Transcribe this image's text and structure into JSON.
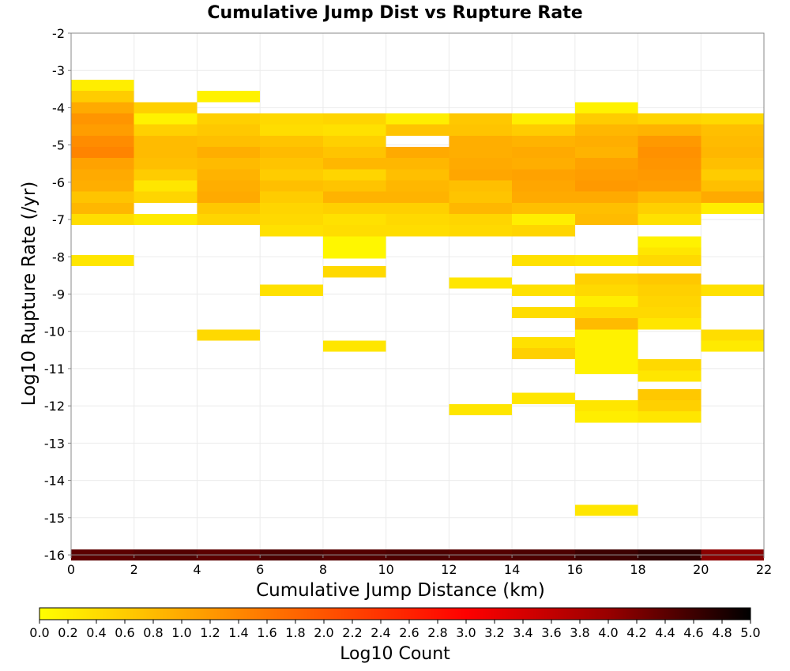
{
  "chart_data": {
    "type": "heatmap",
    "title": "Cumulative Jump Dist vs Rupture Rate",
    "xlabel": "Cumulative Jump Distance (km)",
    "ylabel": "Log10 Rupture Rate (/yr)",
    "xlim": [
      0,
      22
    ],
    "ylim": [
      -16,
      -2
    ],
    "x_ticks": [
      "0",
      "2",
      "4",
      "6",
      "8",
      "10",
      "12",
      "14",
      "16",
      "18",
      "20",
      "22"
    ],
    "y_ticks": [
      "-2",
      "-3",
      "-4",
      "-5",
      "-6",
      "-7",
      "-8",
      "-9",
      "-10",
      "-11",
      "-12",
      "-13",
      "-14",
      "-15",
      "-16"
    ],
    "x_bin_width": 2,
    "y_bin_height": 0.3,
    "grid": true,
    "colorbar": {
      "label": "Log10 Count",
      "range": [
        0,
        5
      ],
      "ticks": [
        "0.0",
        "0.2",
        "0.4",
        "0.6",
        "0.8",
        "1.0",
        "1.2",
        "1.4",
        "1.6",
        "1.8",
        "2.0",
        "2.2",
        "2.4",
        "2.6",
        "2.8",
        "3.0",
        "3.2",
        "3.4",
        "3.6",
        "3.8",
        "4.0",
        "4.2",
        "4.4",
        "4.6",
        "4.8",
        "5.0"
      ],
      "colors": [
        "#ffff00",
        "#ffaa00",
        "#ff5500",
        "#ff0000",
        "#990000",
        "#000000"
      ]
    },
    "cells": [
      [
        0,
        -3.4,
        0.2
      ],
      [
        0,
        -3.7,
        0.6
      ],
      [
        0,
        -4.0,
        1.0
      ],
      [
        0,
        -4.3,
        1.25
      ],
      [
        0,
        -4.6,
        1.15
      ],
      [
        0,
        -4.9,
        1.35
      ],
      [
        0,
        -5.2,
        1.45
      ],
      [
        0,
        -5.5,
        1.1
      ],
      [
        0,
        -5.8,
        1.0
      ],
      [
        0,
        -6.1,
        0.95
      ],
      [
        0,
        -6.4,
        0.7
      ],
      [
        0,
        -6.7,
        0.85
      ],
      [
        0,
        -7.0,
        0.4
      ],
      [
        0,
        -8.1,
        0.3
      ],
      [
        2,
        -4.0,
        0.55
      ],
      [
        2,
        -4.3,
        0.15
      ],
      [
        2,
        -4.6,
        0.55
      ],
      [
        2,
        -4.9,
        0.8
      ],
      [
        2,
        -5.2,
        0.8
      ],
      [
        2,
        -5.5,
        0.75
      ],
      [
        2,
        -5.8,
        0.6
      ],
      [
        2,
        -6.1,
        0.3
      ],
      [
        2,
        -6.4,
        0.5
      ],
      [
        2,
        -7.0,
        0.25
      ],
      [
        4,
        -3.7,
        0.15
      ],
      [
        4,
        -4.3,
        0.55
      ],
      [
        4,
        -4.6,
        0.65
      ],
      [
        4,
        -4.9,
        0.75
      ],
      [
        4,
        -5.2,
        0.95
      ],
      [
        4,
        -5.5,
        0.8
      ],
      [
        4,
        -5.8,
        0.9
      ],
      [
        4,
        -6.1,
        0.95
      ],
      [
        4,
        -6.4,
        1.0
      ],
      [
        4,
        -6.7,
        0.65
      ],
      [
        4,
        -7.0,
        0.5
      ],
      [
        4,
        -10.1,
        0.45
      ],
      [
        6,
        -4.3,
        0.45
      ],
      [
        6,
        -4.6,
        0.4
      ],
      [
        6,
        -4.9,
        0.7
      ],
      [
        6,
        -5.2,
        0.8
      ],
      [
        6,
        -5.5,
        0.7
      ],
      [
        6,
        -5.8,
        0.6
      ],
      [
        6,
        -6.1,
        0.75
      ],
      [
        6,
        -6.4,
        0.6
      ],
      [
        6,
        -6.7,
        0.5
      ],
      [
        6,
        -7.0,
        0.45
      ],
      [
        6,
        -7.3,
        0.35
      ],
      [
        6,
        -8.9,
        0.35
      ],
      [
        8,
        -4.3,
        0.5
      ],
      [
        8,
        -4.6,
        0.35
      ],
      [
        8,
        -4.9,
        0.55
      ],
      [
        8,
        -5.2,
        0.7
      ],
      [
        8,
        -5.5,
        0.85
      ],
      [
        8,
        -5.8,
        0.5
      ],
      [
        8,
        -6.1,
        0.7
      ],
      [
        8,
        -6.4,
        0.9
      ],
      [
        8,
        -6.7,
        0.55
      ],
      [
        8,
        -7.0,
        0.35
      ],
      [
        8,
        -7.3,
        0.4
      ],
      [
        8,
        -7.6,
        0.1
      ],
      [
        8,
        -7.9,
        0.1
      ],
      [
        8,
        -8.4,
        0.45
      ],
      [
        8,
        -10.4,
        0.3
      ],
      [
        10,
        -4.3,
        0.2
      ],
      [
        10,
        -4.6,
        0.7
      ],
      [
        10,
        -5.2,
        1.0
      ],
      [
        10,
        -5.5,
        0.85
      ],
      [
        10,
        -5.8,
        0.75
      ],
      [
        10,
        -6.1,
        0.85
      ],
      [
        10,
        -6.4,
        0.9
      ],
      [
        10,
        -6.7,
        0.55
      ],
      [
        10,
        -7.0,
        0.45
      ],
      [
        10,
        -7.3,
        0.4
      ],
      [
        12,
        -4.3,
        0.65
      ],
      [
        12,
        -4.6,
        0.7
      ],
      [
        12,
        -4.9,
        0.95
      ],
      [
        12,
        -5.2,
        0.95
      ],
      [
        12,
        -5.5,
        1.0
      ],
      [
        12,
        -5.8,
        1.05
      ],
      [
        12,
        -6.1,
        0.75
      ],
      [
        12,
        -6.4,
        0.7
      ],
      [
        12,
        -6.7,
        0.85
      ],
      [
        12,
        -7.0,
        0.5
      ],
      [
        12,
        -7.3,
        0.45
      ],
      [
        12,
        -8.7,
        0.3
      ],
      [
        12,
        -12.1,
        0.3
      ],
      [
        14,
        -4.3,
        0.2
      ],
      [
        14,
        -4.6,
        0.6
      ],
      [
        14,
        -4.9,
        0.9
      ],
      [
        14,
        -5.2,
        1.0
      ],
      [
        14,
        -5.5,
        0.95
      ],
      [
        14,
        -5.8,
        1.1
      ],
      [
        14,
        -6.1,
        1.05
      ],
      [
        14,
        -6.4,
        1.0
      ],
      [
        14,
        -6.7,
        0.75
      ],
      [
        14,
        -7.0,
        0.2
      ],
      [
        14,
        -7.3,
        0.5
      ],
      [
        14,
        -8.1,
        0.35
      ],
      [
        14,
        -8.9,
        0.35
      ],
      [
        14,
        -9.5,
        0.4
      ],
      [
        14,
        -10.3,
        0.35
      ],
      [
        14,
        -10.6,
        0.55
      ],
      [
        14,
        -11.8,
        0.3
      ],
      [
        16,
        -4.0,
        0.15
      ],
      [
        16,
        -4.3,
        0.6
      ],
      [
        16,
        -4.6,
        0.85
      ],
      [
        16,
        -4.9,
        0.95
      ],
      [
        16,
        -5.2,
        0.9
      ],
      [
        16,
        -5.5,
        1.1
      ],
      [
        16,
        -5.8,
        1.15
      ],
      [
        16,
        -6.1,
        1.2
      ],
      [
        16,
        -6.4,
        1.0
      ],
      [
        16,
        -6.7,
        0.75
      ],
      [
        16,
        -7.0,
        0.8
      ],
      [
        16,
        -8.1,
        0.3
      ],
      [
        16,
        -8.6,
        0.55
      ],
      [
        16,
        -8.9,
        0.45
      ],
      [
        16,
        -9.2,
        0.2
      ],
      [
        16,
        -9.5,
        0.45
      ],
      [
        16,
        -9.8,
        0.8
      ],
      [
        16,
        -10.1,
        0.15
      ],
      [
        16,
        -10.4,
        0.15
      ],
      [
        16,
        -10.7,
        0.15
      ],
      [
        16,
        -11.0,
        0.15
      ],
      [
        16,
        -12.0,
        0.3
      ],
      [
        16,
        -12.3,
        0.2
      ],
      [
        16,
        -14.8,
        0.3
      ],
      [
        18,
        -4.3,
        0.5
      ],
      [
        18,
        -4.6,
        0.9
      ],
      [
        18,
        -4.9,
        1.2
      ],
      [
        18,
        -5.2,
        1.3
      ],
      [
        18,
        -5.5,
        1.25
      ],
      [
        18,
        -5.8,
        1.2
      ],
      [
        18,
        -6.1,
        1.15
      ],
      [
        18,
        -6.4,
        0.8
      ],
      [
        18,
        -6.7,
        0.55
      ],
      [
        18,
        -7.0,
        0.35
      ],
      [
        18,
        -7.6,
        0.15
      ],
      [
        18,
        -7.9,
        0.3
      ],
      [
        18,
        -8.1,
        0.45
      ],
      [
        18,
        -8.6,
        0.65
      ],
      [
        18,
        -8.9,
        0.55
      ],
      [
        18,
        -9.2,
        0.5
      ],
      [
        18,
        -9.5,
        0.45
      ],
      [
        18,
        -9.8,
        0.3
      ],
      [
        18,
        -10.9,
        0.45
      ],
      [
        18,
        -11.2,
        0.3
      ],
      [
        18,
        -11.7,
        0.65
      ],
      [
        18,
        -12.0,
        0.55
      ],
      [
        18,
        -12.3,
        0.3
      ],
      [
        20,
        -4.3,
        0.45
      ],
      [
        20,
        -4.6,
        0.75
      ],
      [
        20,
        -4.9,
        0.8
      ],
      [
        20,
        -5.2,
        0.85
      ],
      [
        20,
        -5.5,
        0.75
      ],
      [
        20,
        -5.8,
        0.6
      ],
      [
        20,
        -6.1,
        0.75
      ],
      [
        20,
        -6.4,
        1.0
      ],
      [
        20,
        -6.7,
        0.2
      ],
      [
        20,
        -8.9,
        0.35
      ],
      [
        20,
        -10.1,
        0.4
      ],
      [
        20,
        -10.4,
        0.25
      ],
      [
        0,
        -16.0,
        4.4
      ],
      [
        2,
        -16.0,
        4.45
      ],
      [
        4,
        -16.0,
        4.4
      ],
      [
        6,
        -16.0,
        4.5
      ],
      [
        8,
        -16.0,
        4.45
      ],
      [
        10,
        -16.0,
        4.5
      ],
      [
        12,
        -16.0,
        4.45
      ],
      [
        14,
        -16.0,
        4.5
      ],
      [
        16,
        -16.0,
        4.6
      ],
      [
        18,
        -16.0,
        4.7
      ],
      [
        20,
        -16.0,
        4.1
      ]
    ]
  }
}
